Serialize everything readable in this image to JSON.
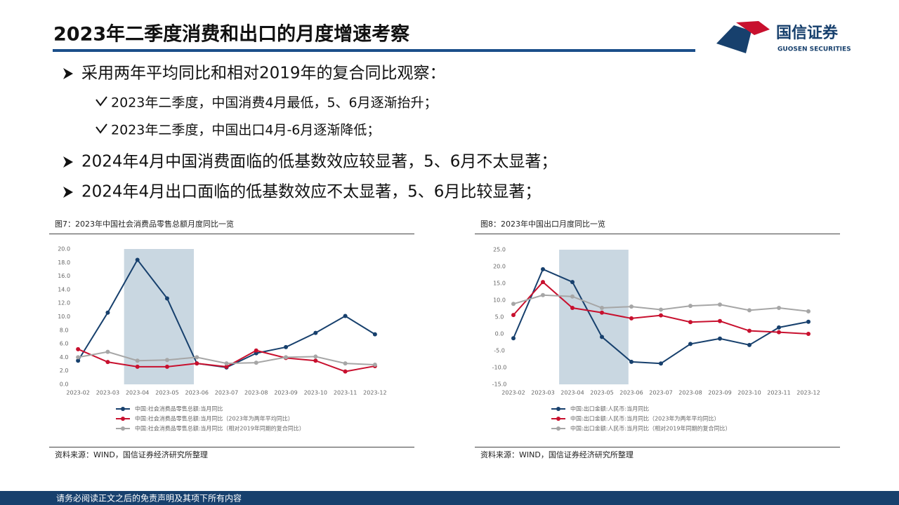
{
  "header": {
    "title": "2023年二季度消费和出口的月度增速考察",
    "logo_cn": "国信证券",
    "logo_en": "GUOSEN SECURITIES"
  },
  "bullets": [
    {
      "text": "采用两年平均同比和相对2019年的复合同比观察：",
      "sub": [
        "2023年二季度，中国消费4月最低，5、6月逐渐抬升；",
        "2023年二季度，中国出口4月-6月逐渐降低；"
      ]
    },
    {
      "text": "2024年4月中国消费面临的低基数效应较显著，5、6月不太显著；",
      "sub": []
    },
    {
      "text": "2024年4月出口面临的低基数效应不太显著，5、6月比较显著；",
      "sub": []
    }
  ],
  "chart_data": [
    {
      "type": "line",
      "title": "图7：2023年中国社会消费品零售总额月度同比一览",
      "source": "资料来源：WIND，国信证券经济研究所整理",
      "categories": [
        "2023-02",
        "2023-03",
        "2023-04",
        "2023-05",
        "2023-06",
        "2023-07",
        "2023-08",
        "2023-09",
        "2023-10",
        "2023-11",
        "2023-12"
      ],
      "highlight_range": [
        2,
        4
      ],
      "ylim": [
        0,
        20
      ],
      "yticks": [
        {
          "value": 0,
          "label": "0.0"
        },
        {
          "value": 2,
          "label": "2.0"
        },
        {
          "value": 4,
          "label": "4.0"
        },
        {
          "value": 6,
          "label": "6.0"
        },
        {
          "value": 8,
          "label": "8.0"
        },
        {
          "value": 10,
          "label": "10.0"
        },
        {
          "value": 12,
          "label": "12.0"
        },
        {
          "value": 14,
          "label": "14.0"
        },
        {
          "value": 16,
          "label": "16.0"
        },
        {
          "value": 18,
          "label": "18.0"
        },
        {
          "value": 20,
          "label": "20.0"
        }
      ],
      "series": [
        {
          "name": "中国:社会消费品零售总额:当月同比",
          "color": "#17406d",
          "values": [
            3.5,
            10.6,
            18.4,
            12.7,
            3.1,
            2.5,
            4.6,
            5.5,
            7.6,
            10.1,
            7.4
          ]
        },
        {
          "name": "中国:社会消费品零售总额:当月同比（2023年为两年平均同比）",
          "color": "#c8102e",
          "values": [
            5.2,
            3.3,
            2.6,
            2.6,
            3.1,
            2.6,
            5.0,
            3.9,
            3.5,
            1.9,
            2.7
          ]
        },
        {
          "name": "中国:社会消费品零售总额:当月同比（相对2019年同期的复合同比）",
          "color": "#a6a6a6",
          "values": [
            4.0,
            4.8,
            3.5,
            3.6,
            4.0,
            3.1,
            3.2,
            4.0,
            4.1,
            3.1,
            2.9
          ]
        }
      ]
    },
    {
      "type": "line",
      "title": "图8：2023年中国出口月度同比一览",
      "source": "资料来源：WIND，国信证券经济研究所整理",
      "categories": [
        "2023-02",
        "2023-03",
        "2023-04",
        "2023-05",
        "2023-06",
        "2023-07",
        "2023-08",
        "2023-09",
        "2023-10",
        "2023-11",
        "2023-12"
      ],
      "highlight_range": [
        2,
        4
      ],
      "ylim": [
        -15,
        25
      ],
      "yticks": [
        {
          "value": -15,
          "label": "-15.0"
        },
        {
          "value": -10,
          "label": "-10.0"
        },
        {
          "value": -5,
          "label": "-5.0"
        },
        {
          "value": 0,
          "label": "0.0"
        },
        {
          "value": 5,
          "label": "5.0"
        },
        {
          "value": 10,
          "label": "10.0"
        },
        {
          "value": 15,
          "label": "15.0"
        },
        {
          "value": 20,
          "label": "20.0"
        },
        {
          "value": 25,
          "label": "25.0"
        }
      ],
      "series": [
        {
          "name": "中国:出口金额:人民币:当月同比",
          "color": "#17406d",
          "values": [
            -1.3,
            19.2,
            15.4,
            -0.9,
            -8.3,
            -8.8,
            -3.0,
            -1.4,
            -3.3,
            1.9,
            3.6
          ]
        },
        {
          "name": "中国:出口金额:人民币:当月同比（2023年为两年平均同比）",
          "color": "#c8102e",
          "values": [
            5.6,
            15.4,
            7.7,
            6.3,
            4.6,
            5.5,
            3.5,
            3.8,
            0.9,
            0.5,
            0.0
          ]
        },
        {
          "name": "中国:出口金额:人民币:当月同比（相对2019年同期的复合同比）",
          "color": "#a6a6a6",
          "values": [
            8.9,
            11.5,
            11.1,
            7.7,
            8.1,
            7.2,
            8.3,
            8.7,
            7.0,
            7.7,
            6.7
          ]
        }
      ]
    }
  ],
  "footer": "请务必阅读正文之后的免责声明及其项下所有内容"
}
